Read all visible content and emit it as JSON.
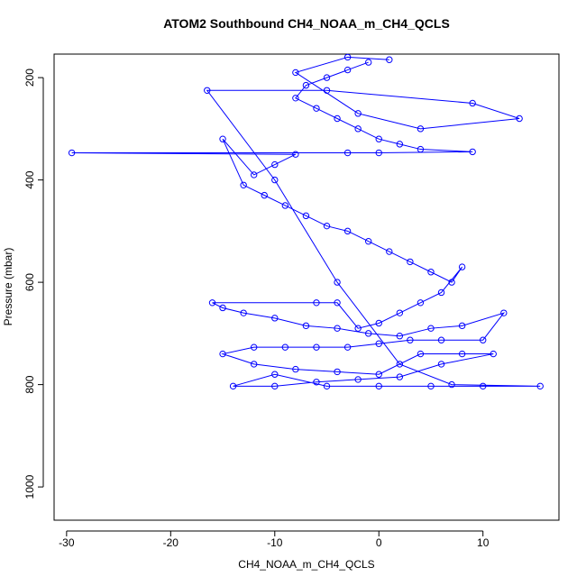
{
  "chart_data": {
    "type": "line",
    "title": "ATOM2 Southbound CH4_NOAA_m_CH4_QCLS",
    "x_label": "CH4_NOAA_m_CH4_QCLS",
    "y_label": "Pressure (mbar)",
    "xlim": [
      -31.2,
      17.3
    ],
    "ylim": [
      1065,
      154
    ],
    "xticks": [
      -30,
      -20,
      -10,
      0,
      10
    ],
    "yticks": [
      200,
      400,
      600,
      800,
      1000
    ],
    "series": [
      {
        "color": "#0000ff",
        "x": [
          -1,
          -3,
          -5,
          -7,
          -8,
          -6,
          -4,
          -2,
          0,
          2,
          4,
          9,
          0,
          -3,
          -29.5,
          -8,
          -10,
          -12,
          -15,
          -13,
          -11,
          -9,
          -7,
          -5,
          -3,
          -1,
          1,
          3,
          5,
          7,
          8,
          6,
          4,
          2,
          0,
          -2,
          -4,
          -6,
          -16,
          -15,
          -13,
          -10,
          -7,
          -4,
          -1,
          2,
          5,
          8,
          12,
          10,
          6,
          3,
          0,
          -3,
          -6,
          -9,
          -12,
          -15,
          -12,
          -8,
          -4,
          0,
          4,
          8,
          11,
          6,
          2,
          -2,
          -6,
          -10,
          -14,
          -10,
          -5,
          0,
          5,
          10,
          15.5,
          7,
          2,
          -4,
          -10,
          -16.5,
          -5,
          9,
          13.5,
          4,
          -2,
          -8,
          -3,
          1
        ],
        "values": [
          170,
          185,
          200,
          215,
          240,
          260,
          280,
          300,
          320,
          330,
          340,
          345,
          347,
          347,
          347,
          350,
          370,
          390,
          320,
          410,
          430,
          450,
          470,
          490,
          500,
          520,
          540,
          560,
          580,
          600,
          570,
          620,
          640,
          660,
          680,
          690,
          640,
          640,
          640,
          650,
          660,
          670,
          685,
          690,
          700,
          705,
          690,
          685,
          660,
          713,
          713,
          713,
          720,
          727,
          727,
          727,
          727,
          740,
          760,
          770,
          775,
          780,
          740,
          740,
          740,
          760,
          785,
          790,
          795,
          803,
          803,
          780,
          803,
          803,
          803,
          803,
          803,
          800,
          760,
          600,
          400,
          225,
          225,
          250,
          280,
          300,
          270,
          190,
          160,
          165
        ]
      }
    ]
  }
}
